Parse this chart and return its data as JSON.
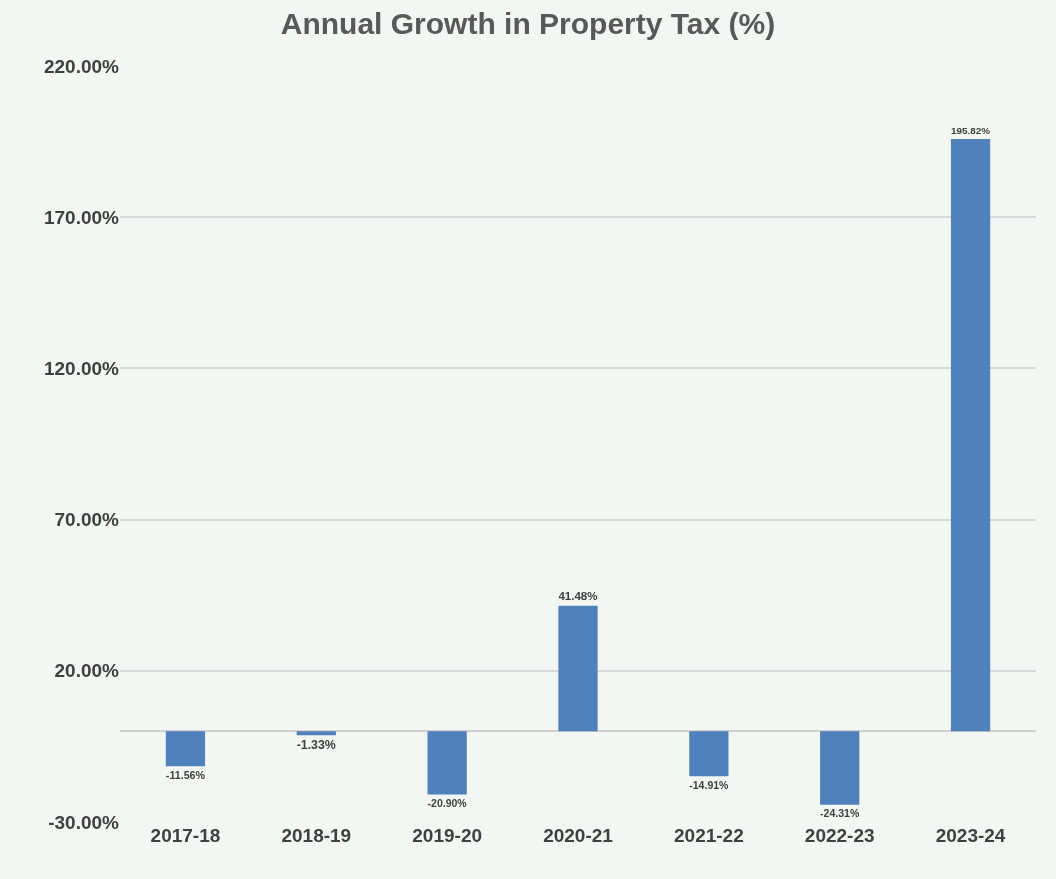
{
  "chart_data": {
    "type": "bar",
    "title": "Annual Growth in Property Tax (%)",
    "categories": [
      "2017-18",
      "2018-19",
      "2019-20",
      "2020-21",
      "2021-22",
      "2022-23",
      "2023-24"
    ],
    "values": [
      -11.56,
      -1.33,
      -20.9,
      41.48,
      -14.91,
      -24.31,
      195.82
    ],
    "value_labels": [
      "-11.56%",
      "-1.33%",
      "-20.90%",
      "41.48%",
      "-14.91%",
      "-24.31%",
      "195.82%"
    ],
    "color": "#4f81bd",
    "ylim": [
      -30,
      220
    ],
    "yticks": [
      {
        "value": -30,
        "label": "-30.00%"
      },
      {
        "value": 20,
        "label": "20.00%"
      },
      {
        "value": 70,
        "label": "70.00%"
      },
      {
        "value": 120,
        "label": "120.00%"
      },
      {
        "value": 170,
        "label": "170.00%"
      },
      {
        "value": 220,
        "label": "220.00%"
      }
    ],
    "grid": "y"
  }
}
